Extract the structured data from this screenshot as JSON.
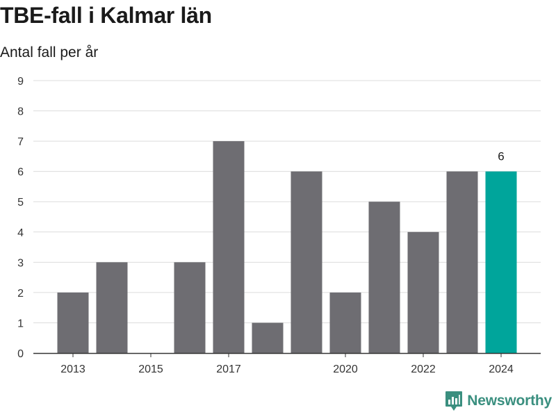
{
  "title": "TBE-fall i Kalmar län",
  "subtitle": "Antal fall per år",
  "brand": "Newsworthy",
  "colors": {
    "bar": "#6e6d72",
    "highlight": "#00a59b",
    "grid": "#dcdcdc",
    "axis": "#333333",
    "brand": "#3a8f7f"
  },
  "chart_data": {
    "type": "bar",
    "categories": [
      "2013",
      "2014",
      "2015",
      "2016",
      "2017",
      "2018",
      "2019",
      "2020",
      "2021",
      "2022",
      "2023",
      "2024"
    ],
    "values": [
      2,
      3,
      0,
      3,
      7,
      1,
      6,
      2,
      5,
      4,
      6,
      6
    ],
    "x_tick_labels": [
      "2013",
      "",
      "2015",
      "",
      "2017",
      "",
      "",
      "2020",
      "",
      "2022",
      "",
      "2024"
    ],
    "y_ticks": [
      0,
      1,
      2,
      3,
      4,
      5,
      6,
      7,
      8,
      9
    ],
    "ylim": [
      0,
      9
    ],
    "highlight_index": 11,
    "data_labels": [
      {
        "index": 11,
        "text": "6"
      }
    ],
    "grid": true,
    "title": "TBE-fall i Kalmar län",
    "ylabel": "Antal fall per år",
    "xlabel": ""
  }
}
